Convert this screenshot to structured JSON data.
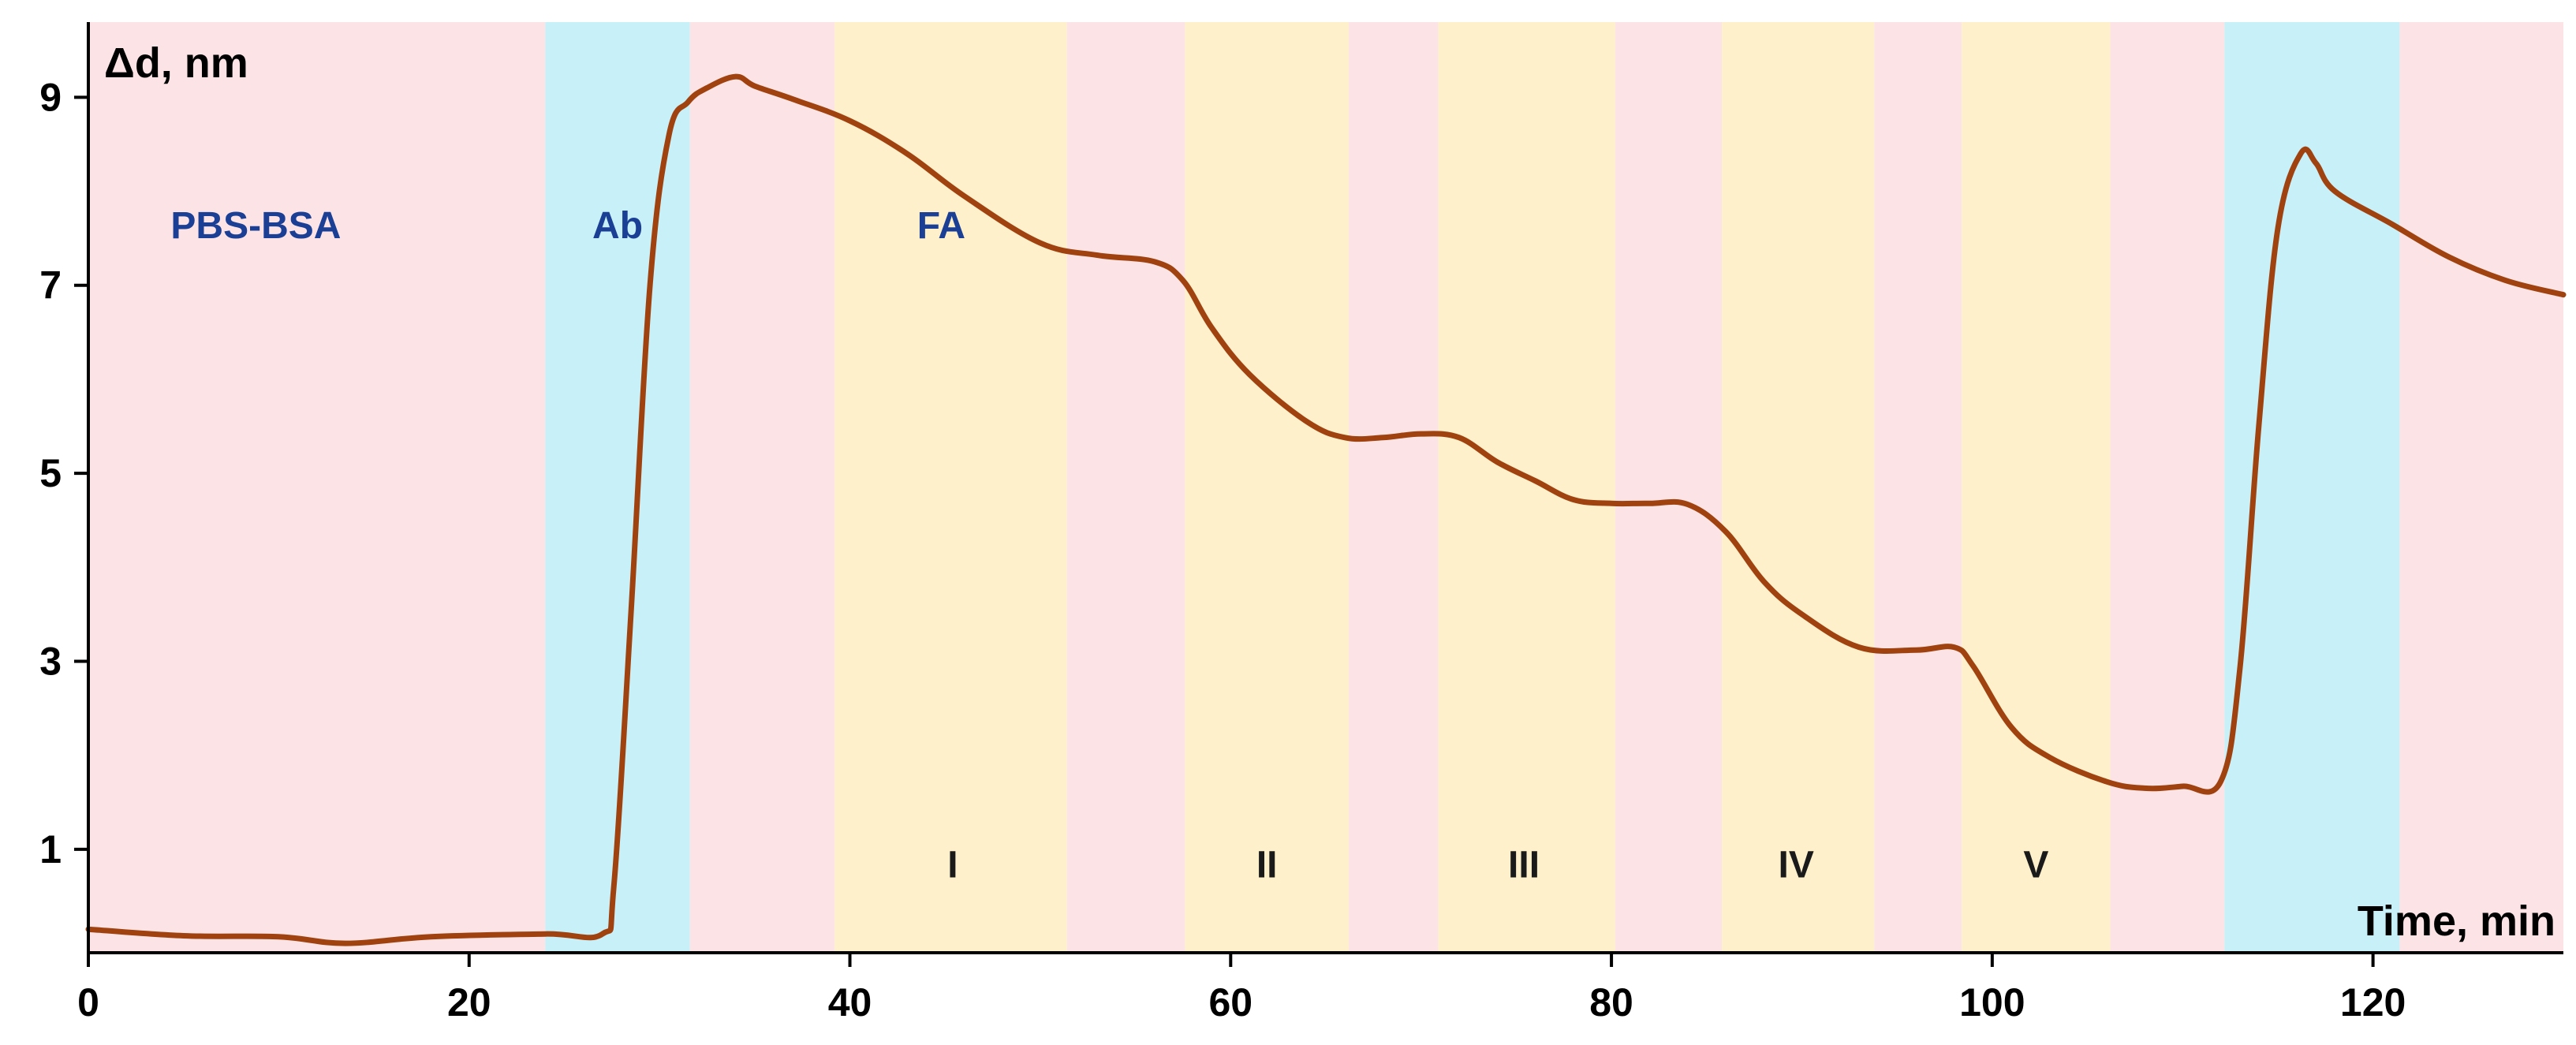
{
  "chart_data": {
    "type": "line",
    "ylabel": "Δd, nm",
    "xlabel": "Time, min",
    "xlim": [
      0,
      130
    ],
    "ylim": [
      -0.1,
      9.8
    ],
    "x_ticks": [
      0,
      20,
      40,
      60,
      80,
      100,
      120
    ],
    "y_ticks": [
      1,
      3,
      5,
      7,
      9
    ],
    "grid": false,
    "series": [
      {
        "color": "#A0420F",
        "x": [
          0,
          5,
          10,
          13.5,
          18,
          24,
          27,
          27.6,
          28.5,
          29.5,
          30.5,
          31.5,
          32.5,
          34,
          35,
          37,
          40,
          43,
          46,
          50,
          53,
          56,
          57.5,
          59,
          61,
          64,
          66,
          68,
          70,
          72,
          74,
          76,
          78,
          80,
          82,
          84,
          86,
          88,
          90,
          93,
          96,
          98,
          99,
          101,
          103,
          106,
          108,
          110,
          112,
          113,
          114,
          115,
          116.2,
          117,
          118,
          121,
          124,
          127,
          130
        ],
        "y": [
          0.15,
          0.08,
          0.07,
          0.0,
          0.07,
          0.1,
          0.1,
          0.6,
          3.5,
          7.0,
          8.6,
          8.95,
          9.1,
          9.22,
          9.12,
          8.98,
          8.75,
          8.4,
          7.95,
          7.45,
          7.32,
          7.25,
          7.05,
          6.55,
          6.05,
          5.55,
          5.38,
          5.38,
          5.42,
          5.38,
          5.12,
          4.92,
          4.72,
          4.68,
          4.68,
          4.67,
          4.38,
          3.85,
          3.5,
          3.15,
          3.12,
          3.15,
          2.95,
          2.3,
          1.98,
          1.72,
          1.65,
          1.67,
          1.72,
          2.9,
          5.5,
          7.6,
          8.4,
          8.3,
          8.0,
          7.65,
          7.3,
          7.05,
          6.9
        ]
      }
    ],
    "phases": [
      {
        "start": 0,
        "end": 24,
        "type": "buffer",
        "label": "PBS-BSA",
        "label_x": 8.8,
        "label_y": 7.5
      },
      {
        "start": 24,
        "end": 31.6,
        "type": "antibody",
        "label": "Ab",
        "label_x": 27.8,
        "label_y": 7.5
      },
      {
        "start": 31.6,
        "end": 39.2,
        "type": "buffer",
        "label": ""
      },
      {
        "start": 39.2,
        "end": 51.4,
        "type": "sample",
        "label": "I",
        "label_x": 45.4,
        "label_y": 0.7
      },
      {
        "start": 51.4,
        "end": 57.6,
        "type": "buffer",
        "label": ""
      },
      {
        "start": 57.6,
        "end": 66.2,
        "type": "sample",
        "label": "II",
        "label_x": 61.9,
        "label_y": 0.7
      },
      {
        "start": 66.2,
        "end": 70.9,
        "type": "buffer",
        "label": ""
      },
      {
        "start": 70.9,
        "end": 80.2,
        "type": "sample",
        "label": "III",
        "label_x": 75.4,
        "label_y": 0.7
      },
      {
        "start": 80.2,
        "end": 85.8,
        "type": "buffer",
        "label": ""
      },
      {
        "start": 85.8,
        "end": 93.8,
        "type": "sample",
        "label": "IV",
        "label_x": 89.7,
        "label_y": 0.7
      },
      {
        "start": 93.8,
        "end": 98.4,
        "type": "buffer",
        "label": ""
      },
      {
        "start": 98.4,
        "end": 106.2,
        "type": "sample",
        "label": "V",
        "label_x": 102.3,
        "label_y": 0.7
      },
      {
        "start": 106.2,
        "end": 112.2,
        "type": "buffer",
        "label": ""
      },
      {
        "start": 112.2,
        "end": 121.4,
        "type": "antibody",
        "label": ""
      },
      {
        "start": 121.4,
        "end": 130,
        "type": "buffer",
        "label": ""
      }
    ],
    "annotations": [
      {
        "text": "FA",
        "x": 44.8,
        "y": 7.5,
        "color": "#1A3F94"
      }
    ],
    "colors": {
      "buffer": "#FCE4E6",
      "antibody": "#C7F0F8",
      "sample": "#FEF0CB",
      "phase_text_top": "#1A3F94",
      "phase_text_bottom": "#1a1a1a",
      "line": "#A0420F"
    }
  }
}
